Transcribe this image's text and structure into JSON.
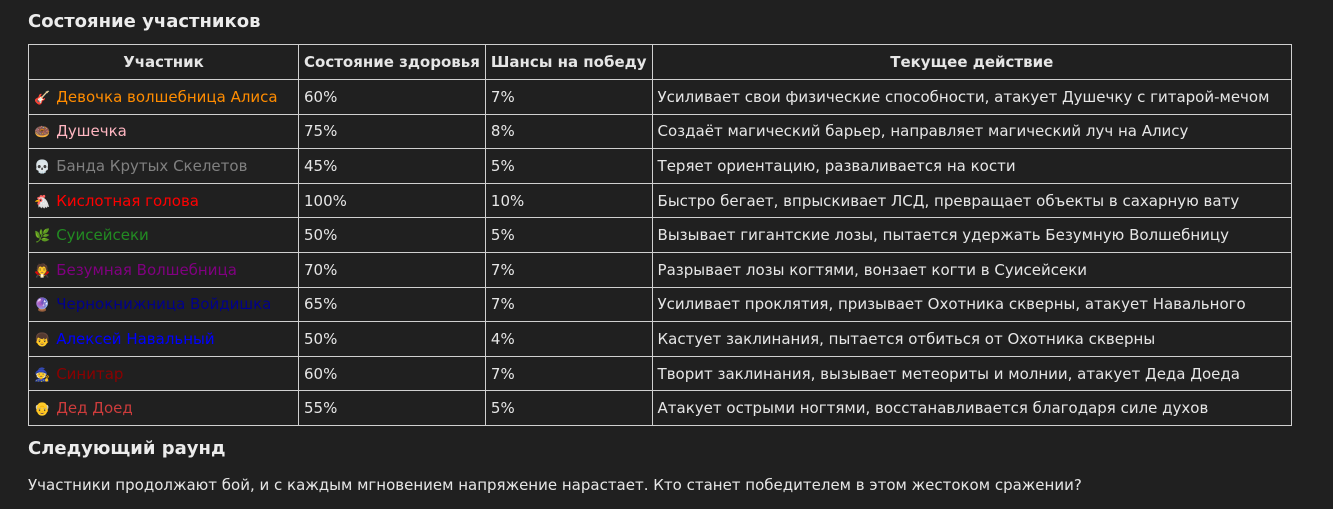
{
  "title": "Состояние участников",
  "table": {
    "header": [
      "Участник",
      "Состояние здоровья",
      "Шансы на победу",
      "Текущее действие"
    ],
    "rows": [
      {
        "icon": "🎸",
        "name": "Девочка волшебница Алиса",
        "color": "#ff8c00",
        "health": "60%",
        "chance": "7%",
        "action": "Усиливает свои физические способности, атакует Душечку с гитарой-мечом"
      },
      {
        "icon": "🍩",
        "name": "Душечка",
        "color": "#ffb6c1",
        "health": "75%",
        "chance": "8%",
        "action": "Создаёт магический барьер, направляет магический луч на Алису"
      },
      {
        "icon": "💀",
        "name": "Банда Крутых Скелетов",
        "color": "#808080",
        "health": "45%",
        "chance": "5%",
        "action": "Теряет ориентацию, разваливается на кости"
      },
      {
        "icon": "🐔",
        "name": "Кислотная голова",
        "color": "#ff0000",
        "health": "100%",
        "chance": "10%",
        "action": "Быстро бегает, впрыскивает ЛСД, превращает объекты в сахарную вату"
      },
      {
        "icon": "🌿",
        "name": "Суисейсеки",
        "color": "#228b22",
        "health": "50%",
        "chance": "5%",
        "action": "Вызывает гигантские лозы, пытается удержать Безумную Волшебницу"
      },
      {
        "icon": "🧛",
        "name": "Безумная Волшебница",
        "color": "#800080",
        "health": "70%",
        "chance": "7%",
        "action": "Разрывает лозы когтями, вонзает когти в Суисейсеки"
      },
      {
        "icon": "🔮",
        "name": "Чернокнижница Войдишка",
        "color": "#00008b",
        "health": "65%",
        "chance": "7%",
        "action": "Усиливает проклятия, призывает Охотника скверны, атакует Навального"
      },
      {
        "icon": "👦",
        "name": "Алексей Навальный",
        "color": "#0000ff",
        "health": "50%",
        "chance": "4%",
        "action": "Кастует заклинания, пытается отбиться от Охотника скверны"
      },
      {
        "icon": "🧙",
        "name": "Синитар",
        "color": "#8b0000",
        "health": "60%",
        "chance": "7%",
        "action": "Творит заклинания, вызывает метеориты и молнии, атакует Деда Доеда"
      },
      {
        "icon": "👴",
        "name": "Дед Доед",
        "color": "#cd3c3c",
        "health": "55%",
        "chance": "5%",
        "action": "Атакует острыми ногтями, восстанавливается благодаря силе духов"
      }
    ]
  },
  "next": {
    "title": "Следующий раунд",
    "text": "Участники продолжают бой, и с каждым мгновением напряжение нарастает. Кто станет победителем в этом жестоком сражении?"
  }
}
